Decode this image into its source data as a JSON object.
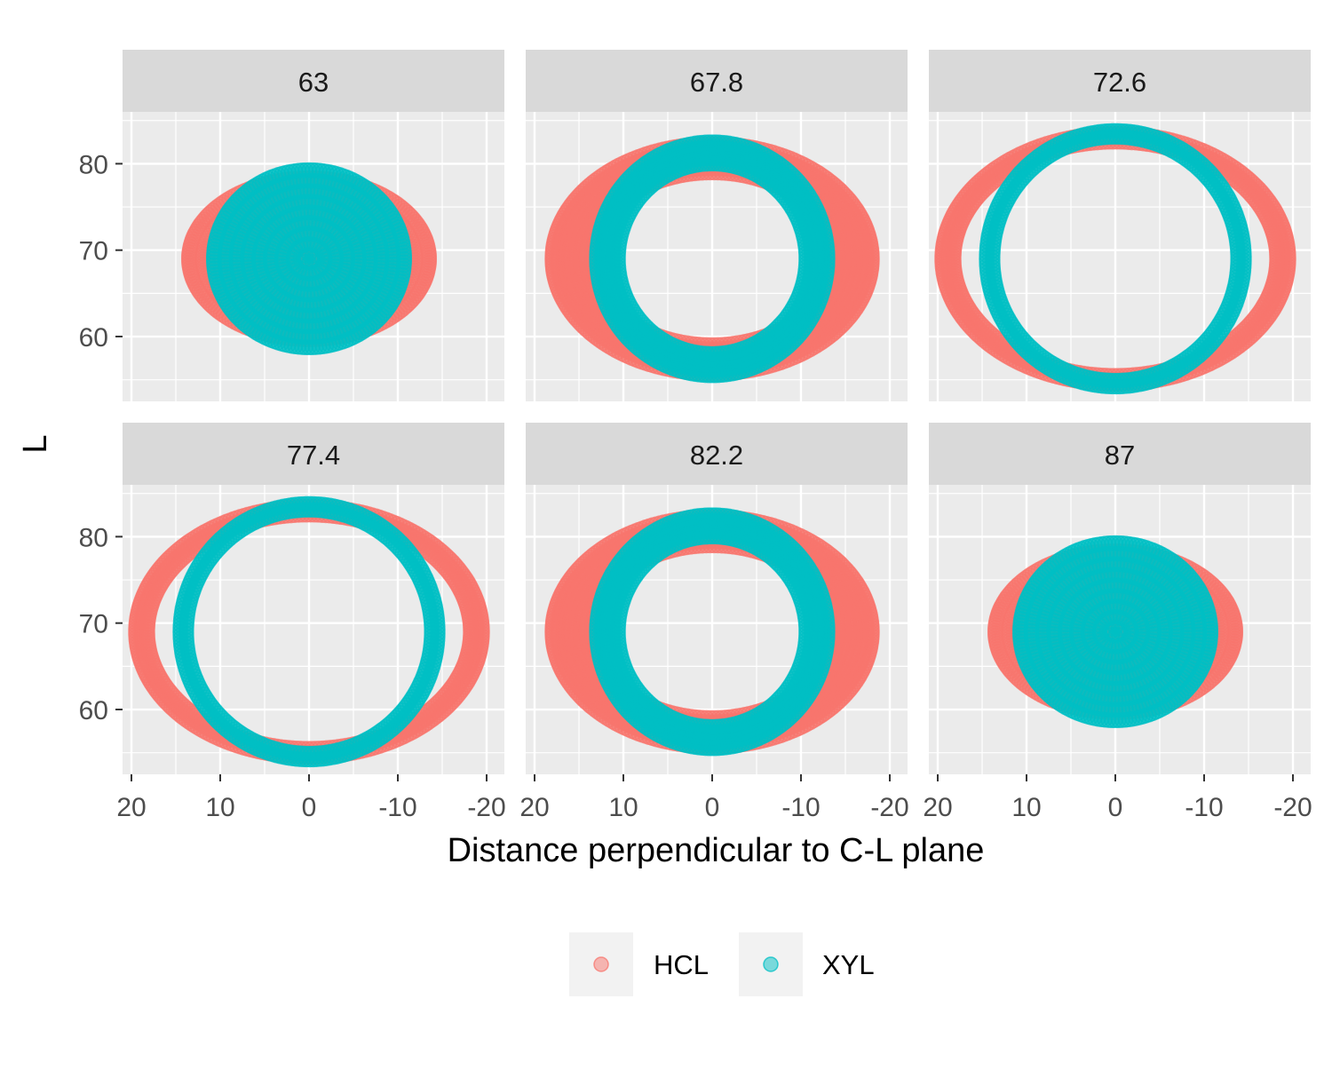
{
  "chart_data": {
    "type": "scatter",
    "layout": "facet-grid 2x3",
    "xlabel": "Distance perpendicular to C-L plane",
    "ylabel": "L",
    "x_reversed": true,
    "xlim": [
      21,
      -22
    ],
    "ylim": [
      52.5,
      86
    ],
    "x_ticks": [
      20,
      10,
      0,
      -10,
      -20
    ],
    "y_ticks": [
      60,
      70,
      80
    ],
    "grid": true,
    "legend_position": "bottom",
    "series": [
      {
        "name": "HCL",
        "color": "#F8766D"
      },
      {
        "name": "XYL",
        "color": "#00BFC4"
      }
    ],
    "center": [
      0,
      69
    ],
    "panels": [
      {
        "label": "63",
        "shape": "disk",
        "HCL": {
          "rx": 14.5,
          "ry": 10
        },
        "XYL": {
          "rx": 11.5,
          "ry": 11
        }
      },
      {
        "label": "67.8",
        "shape": "ring",
        "HCL": {
          "rx": 18,
          "ry": 13.3,
          "thickness": 4.5
        },
        "XYL": {
          "rx": 13,
          "ry": 13.5,
          "thickness": 2.5
        }
      },
      {
        "label": "72.6",
        "shape": "ring",
        "HCL": {
          "rx": 19.5,
          "ry": 14.5,
          "thickness": 1.3
        },
        "XYL": {
          "rx": 14.5,
          "ry": 14.8,
          "thickness": 0.7
        }
      },
      {
        "label": "77.4",
        "shape": "ring",
        "HCL": {
          "rx": 19.5,
          "ry": 14.5,
          "thickness": 1.3
        },
        "XYL": {
          "rx": 14.5,
          "ry": 14.8,
          "thickness": 0.7
        }
      },
      {
        "label": "82.2",
        "shape": "ring",
        "HCL": {
          "rx": 18,
          "ry": 13.3,
          "thickness": 4.5
        },
        "XYL": {
          "rx": 13,
          "ry": 13.5,
          "thickness": 2.5
        }
      },
      {
        "label": "87",
        "shape": "disk",
        "HCL": {
          "rx": 14.5,
          "ry": 10
        },
        "XYL": {
          "rx": 11.5,
          "ry": 11
        }
      }
    ]
  }
}
